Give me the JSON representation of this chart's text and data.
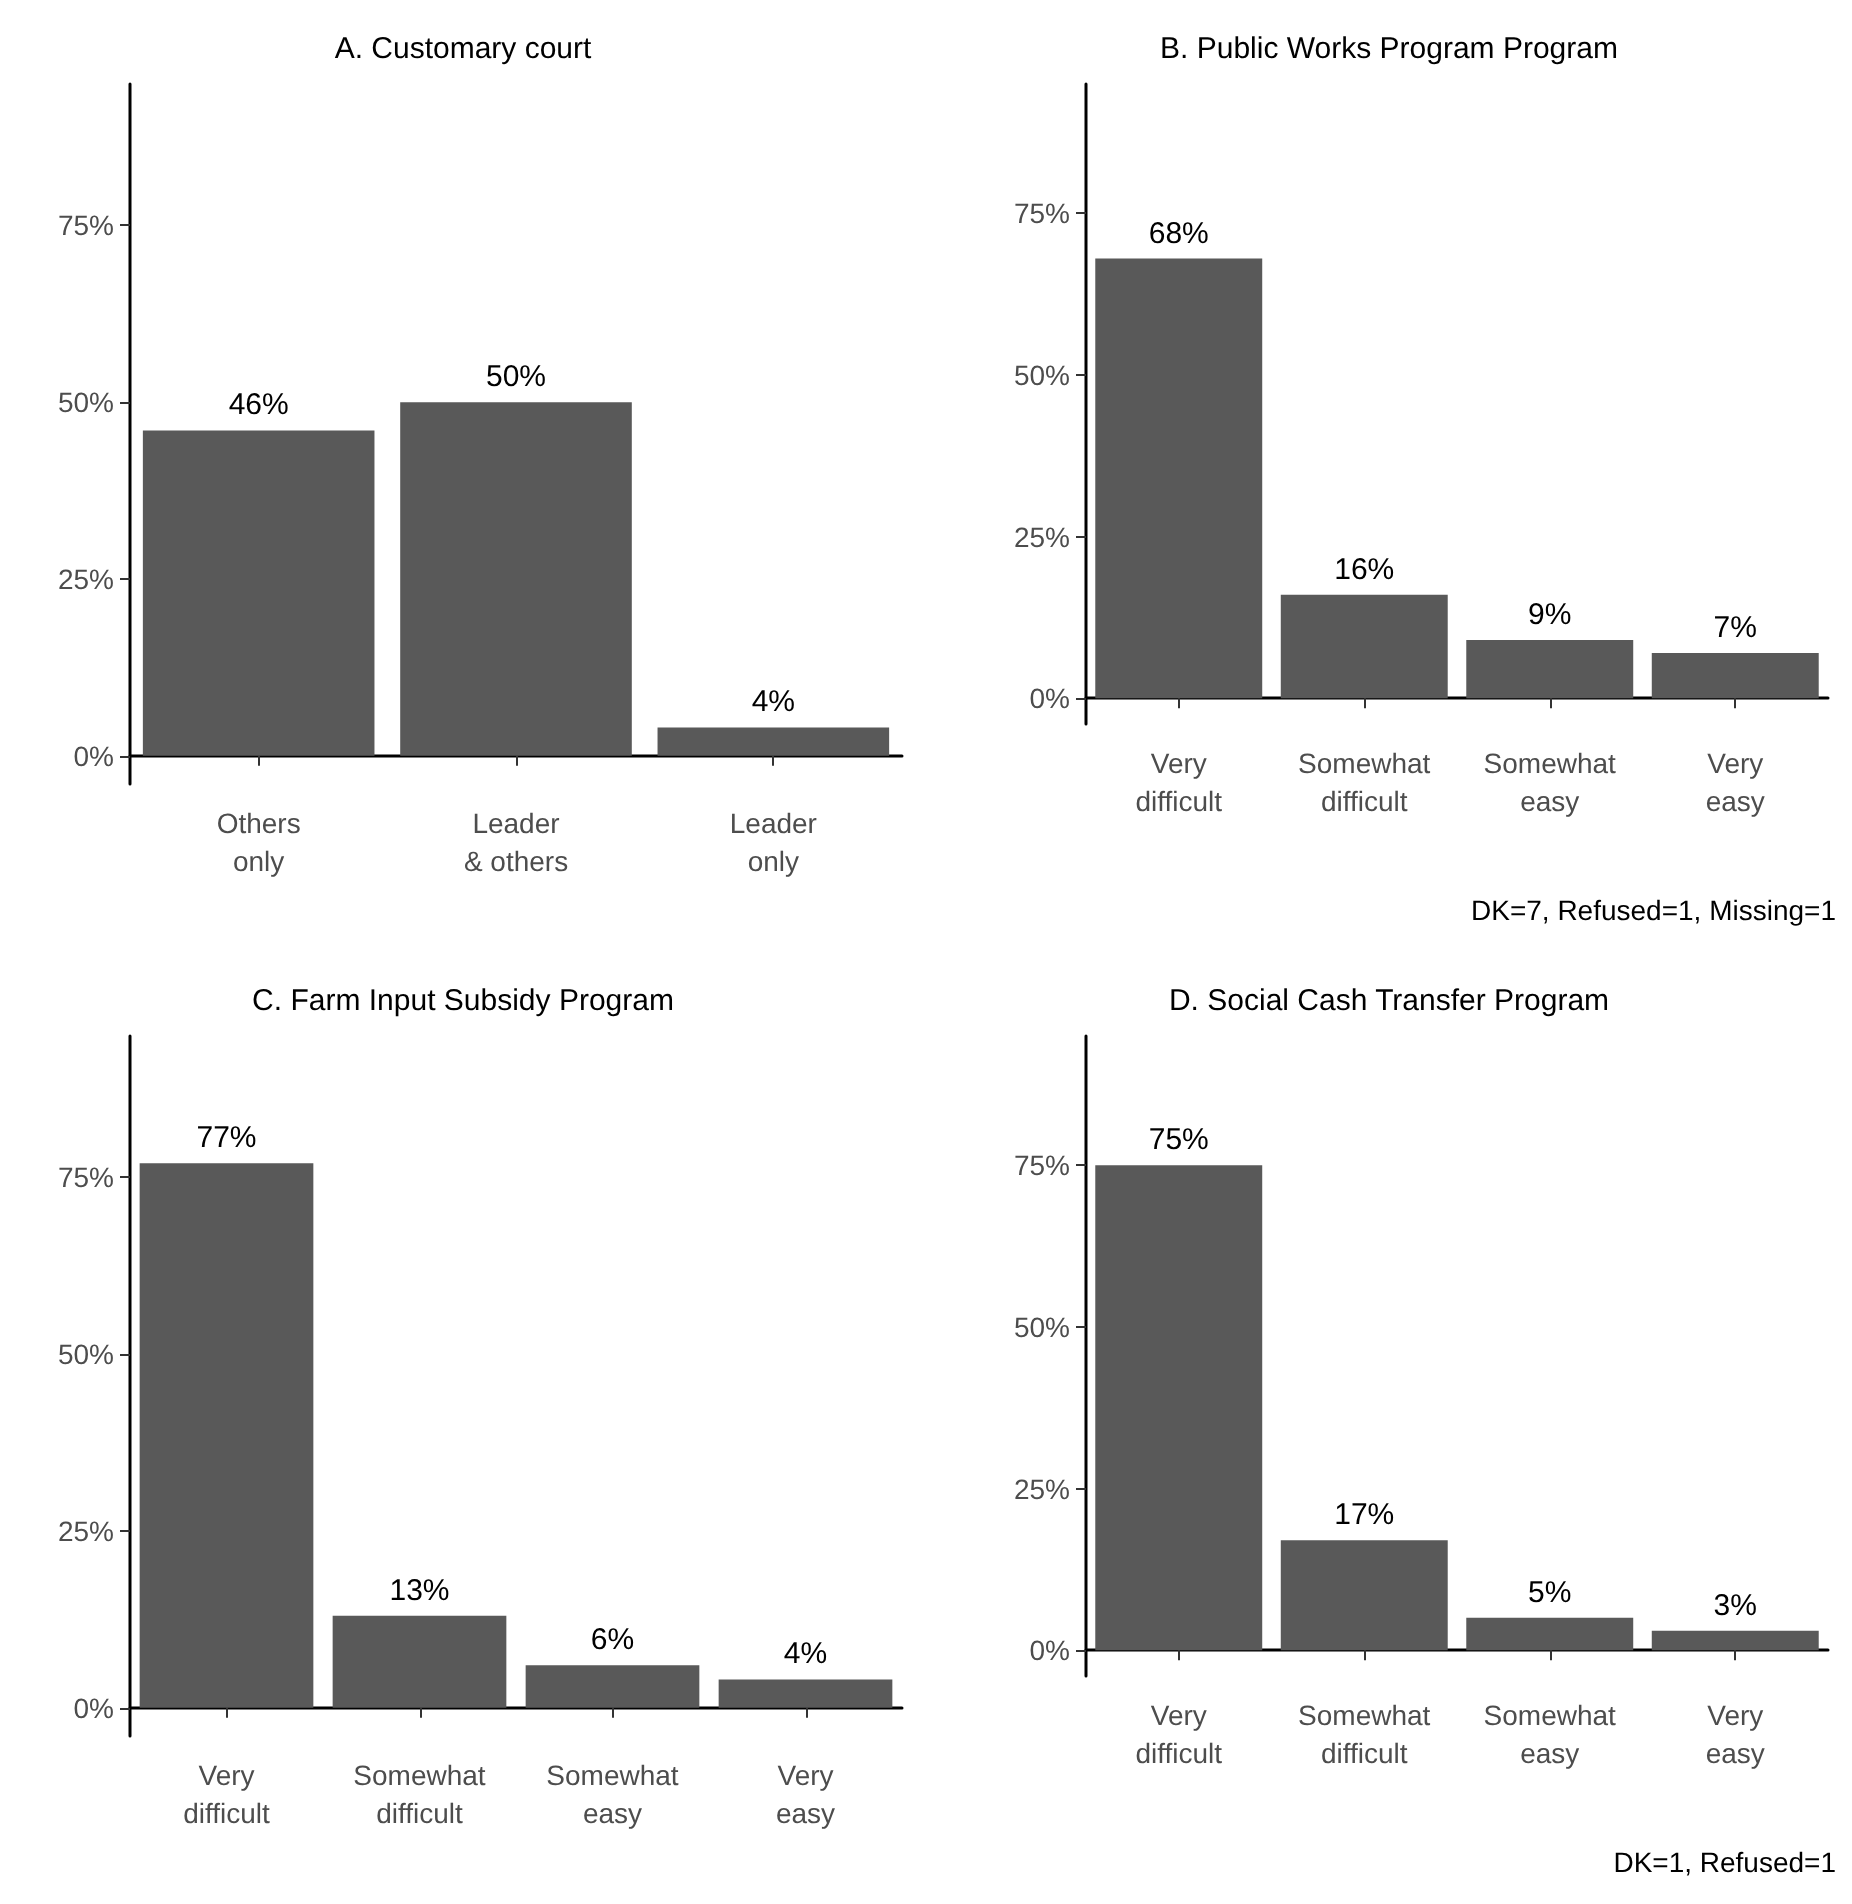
{
  "chart_data": [
    {
      "type": "bar",
      "title": "A. Customary court",
      "categories": [
        "Others\nonly",
        "Leader\n& others",
        "Leader\nonly"
      ],
      "values": [
        46,
        50,
        4
      ],
      "value_labels": [
        "46%",
        "50%",
        "4%"
      ],
      "color": "#595959",
      "ylim": [
        -4,
        95
      ],
      "yticks": [
        {
          "value": 0,
          "label": "0%"
        },
        {
          "value": 25,
          "label": "25%"
        },
        {
          "value": 50,
          "label": "50%"
        },
        {
          "value": 75,
          "label": "75%"
        }
      ],
      "grid": false
    },
    {
      "type": "bar",
      "title": "B. Public Works Program Program",
      "categories": [
        "Very\ndifficult",
        "Somewhat\ndifficult",
        "Somewhat\neasy",
        "Very\neasy"
      ],
      "values": [
        68,
        16,
        9,
        7
      ],
      "value_labels": [
        "68%",
        "16%",
        "9%",
        "7%"
      ],
      "color": "#595959",
      "ylim": [
        -4,
        95
      ],
      "yticks": [
        {
          "value": 0,
          "label": "0%"
        },
        {
          "value": 25,
          "label": "25%"
        },
        {
          "value": 50,
          "label": "50%"
        },
        {
          "value": 75,
          "label": "75%"
        }
      ],
      "grid": false,
      "annotations": [
        "DK=7, Refused=1, Missing=1"
      ]
    },
    {
      "type": "bar",
      "title": "C. Farm Input Subsidy Program",
      "categories": [
        "Very\ndifficult",
        "Somewhat\ndifficult",
        "Somewhat\neasy",
        "Very\neasy"
      ],
      "values": [
        77,
        13,
        6,
        4
      ],
      "value_labels": [
        "77%",
        "13%",
        "6%",
        "4%"
      ],
      "color": "#595959",
      "ylim": [
        -4,
        95
      ],
      "yticks": [
        {
          "value": 0,
          "label": "0%"
        },
        {
          "value": 25,
          "label": "25%"
        },
        {
          "value": 50,
          "label": "50%"
        },
        {
          "value": 75,
          "label": "75%"
        }
      ],
      "grid": false
    },
    {
      "type": "bar",
      "title": "D. Social Cash Transfer Program",
      "categories": [
        "Very\ndifficult",
        "Somewhat\ndifficult",
        "Somewhat\neasy",
        "Very\neasy"
      ],
      "values": [
        75,
        17,
        5,
        3
      ],
      "value_labels": [
        "75%",
        "17%",
        "5%",
        "3%"
      ],
      "color": "#595959",
      "ylim": [
        -4,
        95
      ],
      "yticks": [
        {
          "value": 0,
          "label": "0%"
        },
        {
          "value": 25,
          "label": "25%"
        },
        {
          "value": 50,
          "label": "50%"
        },
        {
          "value": 75,
          "label": "75%"
        }
      ],
      "grid": false,
      "annotations": [
        "DK=1, Refused=1"
      ]
    }
  ]
}
